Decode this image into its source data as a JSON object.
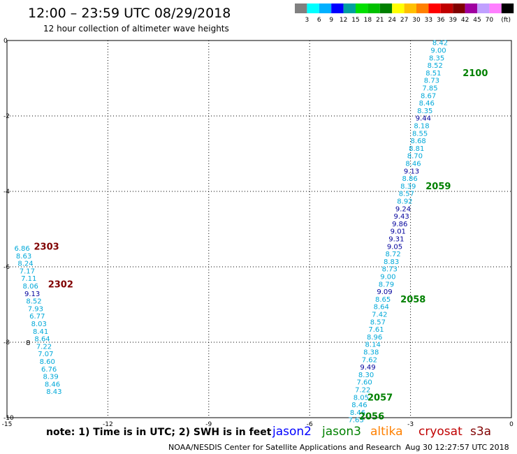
{
  "title": "12:00 – 23:59 UTC 08/29/2018",
  "subtitle": "12 hour collection of altimeter wave heights",
  "colorbar": {
    "unit_label": "(ft)",
    "bins": [
      {
        "color": "#808080",
        "label": ""
      },
      {
        "color": "#00ffff",
        "label": "3"
      },
      {
        "color": "#00b0ff",
        "label": "6"
      },
      {
        "color": "#0000ff",
        "label": "9"
      },
      {
        "color": "#00a0a0",
        "label": "12"
      },
      {
        "color": "#00e000",
        "label": "15"
      },
      {
        "color": "#00c000",
        "label": "18"
      },
      {
        "color": "#008000",
        "label": "21"
      },
      {
        "color": "#ffff00",
        "label": "24"
      },
      {
        "color": "#ffc000",
        "label": "27"
      },
      {
        "color": "#ff8000",
        "label": "30"
      },
      {
        "color": "#ff0000",
        "label": "33"
      },
      {
        "color": "#c00000",
        "label": "36"
      },
      {
        "color": "#800000",
        "label": "39"
      },
      {
        "color": "#a000a0",
        "label": "42"
      },
      {
        "color": "#c0a0ff",
        "label": "45"
      },
      {
        "color": "#ff80ff",
        "label": "70"
      },
      {
        "color": "#000000",
        "label": ""
      }
    ]
  },
  "footer": {
    "note": "note:  1) Time is in UTC;  2) SWH is in feet",
    "satellites": [
      {
        "name": "jason2",
        "color": "#0000ff"
      },
      {
        "name": "jason3",
        "color": "#008000"
      },
      {
        "name": "altika",
        "color": "#ff8000"
      },
      {
        "name": "cryosat",
        "color": "#c00000"
      },
      {
        "name": "s3a",
        "color": "#800000"
      }
    ],
    "credit": "NOAA/NESDIS Center for Satellite Applications and Research",
    "timestamp": "Aug 30 12:27:57 UTC 2018"
  },
  "chart_data": {
    "type": "scatter",
    "xlim": [
      -15,
      0
    ],
    "ylim": [
      -10,
      0
    ],
    "xticks": [
      -15,
      -12,
      -9,
      -6,
      -3,
      0
    ],
    "yticks": [
      0,
      -2,
      -4,
      -6,
      -8,
      -10
    ],
    "grid": true,
    "colors": {
      "cyan": "#00a8d8",
      "navy": "#00009c",
      "green": "#008000",
      "maroon": "#800000",
      "black": "#000000"
    },
    "tracks": [
      {
        "name": "jason3 track",
        "points": [
          {
            "x": -2.12,
            "y": -0.05,
            "v": "8.42",
            "c": "cyan"
          },
          {
            "x": -2.17,
            "y": -0.25,
            "v": "9.00",
            "c": "cyan"
          },
          {
            "x": -2.22,
            "y": -0.45,
            "v": "8.35",
            "c": "cyan"
          },
          {
            "x": -2.27,
            "y": -0.65,
            "v": "8.52",
            "c": "cyan"
          },
          {
            "x": -2.32,
            "y": -0.85,
            "v": "8.51",
            "c": "cyan"
          },
          {
            "x": -2.37,
            "y": -1.05,
            "v": "8.73",
            "c": "cyan"
          },
          {
            "x": -2.42,
            "y": -1.25,
            "v": "7.85",
            "c": "cyan"
          },
          {
            "x": -2.47,
            "y": -1.45,
            "v": "8.67",
            "c": "cyan"
          },
          {
            "x": -2.52,
            "y": -1.65,
            "v": "8.46",
            "c": "cyan"
          },
          {
            "x": -2.57,
            "y": -1.85,
            "v": "8.35",
            "c": "cyan"
          },
          {
            "x": -2.62,
            "y": -2.05,
            "v": "9.44",
            "c": "navy"
          },
          {
            "x": -2.67,
            "y": -2.25,
            "v": "8.18",
            "c": "cyan"
          },
          {
            "x": -2.72,
            "y": -2.45,
            "v": "8.55",
            "c": "cyan"
          },
          {
            "x": -2.77,
            "y": -2.65,
            "v": "8.68",
            "c": "cyan"
          },
          {
            "x": -2.82,
            "y": -2.85,
            "v": "8.81",
            "c": "cyan"
          },
          {
            "x": -2.87,
            "y": -3.05,
            "v": "8.70",
            "c": "cyan"
          },
          {
            "x": -2.92,
            "y": -3.25,
            "v": "8.46",
            "c": "cyan"
          },
          {
            "x": -2.97,
            "y": -3.45,
            "v": "9.13",
            "c": "navy"
          },
          {
            "x": -3.02,
            "y": -3.65,
            "v": "8.86",
            "c": "cyan"
          },
          {
            "x": -3.07,
            "y": -3.85,
            "v": "8.39",
            "c": "cyan"
          },
          {
            "x": -3.12,
            "y": -4.05,
            "v": "8.57",
            "c": "cyan"
          },
          {
            "x": -3.17,
            "y": -4.25,
            "v": "8.92",
            "c": "cyan"
          },
          {
            "x": -3.22,
            "y": -4.45,
            "v": "9.24",
            "c": "navy"
          },
          {
            "x": -3.27,
            "y": -4.65,
            "v": "9.43",
            "c": "navy"
          },
          {
            "x": -3.32,
            "y": -4.85,
            "v": "9.86",
            "c": "navy"
          },
          {
            "x": -3.37,
            "y": -5.05,
            "v": "9.01",
            "c": "navy"
          },
          {
            "x": -3.42,
            "y": -5.25,
            "v": "9.31",
            "c": "navy"
          },
          {
            "x": -3.47,
            "y": -5.45,
            "v": "9.05",
            "c": "navy"
          },
          {
            "x": -3.52,
            "y": -5.65,
            "v": "8.72",
            "c": "cyan"
          },
          {
            "x": -3.57,
            "y": -5.85,
            "v": "8.83",
            "c": "cyan"
          },
          {
            "x": -3.62,
            "y": -6.05,
            "v": "8.73",
            "c": "cyan"
          },
          {
            "x": -3.67,
            "y": -6.25,
            "v": "9.00",
            "c": "cyan"
          },
          {
            "x": -3.72,
            "y": -6.45,
            "v": "8.79",
            "c": "cyan"
          },
          {
            "x": -3.77,
            "y": -6.65,
            "v": "9.09",
            "c": "navy"
          },
          {
            "x": -3.82,
            "y": -6.85,
            "v": "8.65",
            "c": "cyan"
          },
          {
            "x": -3.87,
            "y": -7.05,
            "v": "8.64",
            "c": "cyan"
          },
          {
            "x": -3.92,
            "y": -7.25,
            "v": "7.42",
            "c": "cyan"
          },
          {
            "x": -3.97,
            "y": -7.45,
            "v": "8.57",
            "c": "cyan"
          },
          {
            "x": -4.02,
            "y": -7.65,
            "v": "7.61",
            "c": "cyan"
          },
          {
            "x": -4.07,
            "y": -7.85,
            "v": "8.96",
            "c": "cyan"
          },
          {
            "x": -4.12,
            "y": -8.05,
            "v": "8.14",
            "c": "cyan"
          },
          {
            "x": -4.17,
            "y": -8.25,
            "v": "8.38",
            "c": "cyan"
          },
          {
            "x": -4.22,
            "y": -8.45,
            "v": "7.62",
            "c": "cyan"
          },
          {
            "x": -4.27,
            "y": -8.65,
            "v": "9.49",
            "c": "navy"
          },
          {
            "x": -4.32,
            "y": -8.85,
            "v": "8.30",
            "c": "cyan"
          },
          {
            "x": -4.37,
            "y": -9.05,
            "v": "7.60",
            "c": "cyan"
          },
          {
            "x": -4.42,
            "y": -9.25,
            "v": "7.22",
            "c": "cyan"
          },
          {
            "x": -4.47,
            "y": -9.45,
            "v": "8.05",
            "c": "cyan"
          },
          {
            "x": -4.52,
            "y": -9.65,
            "v": "8.46",
            "c": "cyan"
          },
          {
            "x": -4.57,
            "y": -9.85,
            "v": "8.46",
            "c": "cyan"
          },
          {
            "x": -4.62,
            "y": -10.05,
            "v": "7.63",
            "c": "cyan"
          }
        ]
      },
      {
        "name": "s3a track",
        "points": [
          {
            "x": -14.55,
            "y": -5.5,
            "v": "6.86",
            "c": "cyan"
          },
          {
            "x": -14.5,
            "y": -5.7,
            "v": "8.63",
            "c": "cyan"
          },
          {
            "x": -14.45,
            "y": -5.9,
            "v": "8.24",
            "c": "cyan"
          },
          {
            "x": -14.4,
            "y": -6.1,
            "v": "7.17",
            "c": "cyan"
          },
          {
            "x": -14.35,
            "y": -6.3,
            "v": "7.11",
            "c": "cyan"
          },
          {
            "x": -14.3,
            "y": -6.5,
            "v": "8.06",
            "c": "cyan"
          },
          {
            "x": -14.25,
            "y": -6.7,
            "v": "9.13",
            "c": "navy"
          },
          {
            "x": -14.2,
            "y": -6.9,
            "v": "8.52",
            "c": "cyan"
          },
          {
            "x": -14.15,
            "y": -7.1,
            "v": "7.93",
            "c": "cyan"
          },
          {
            "x": -14.1,
            "y": -7.3,
            "v": "6.77",
            "c": "cyan"
          },
          {
            "x": -14.05,
            "y": -7.5,
            "v": "8.03",
            "c": "cyan"
          },
          {
            "x": -14.0,
            "y": -7.7,
            "v": "8.41",
            "c": "cyan"
          },
          {
            "x": -13.95,
            "y": -7.9,
            "v": "8.64",
            "c": "cyan"
          },
          {
            "x": -13.9,
            "y": -8.1,
            "v": "7.22",
            "c": "cyan"
          },
          {
            "x": -13.85,
            "y": -8.3,
            "v": "7.07",
            "c": "cyan"
          },
          {
            "x": -13.8,
            "y": -8.5,
            "v": "8.60",
            "c": "cyan"
          },
          {
            "x": -13.75,
            "y": -8.7,
            "v": "6.76",
            "c": "cyan"
          },
          {
            "x": -13.7,
            "y": -8.9,
            "v": "8.39",
            "c": "cyan"
          },
          {
            "x": -13.65,
            "y": -9.1,
            "v": "8.46",
            "c": "cyan"
          },
          {
            "x": -13.6,
            "y": -9.3,
            "v": "8.43",
            "c": "cyan"
          }
        ]
      }
    ],
    "pass_times": [
      {
        "x": -1.45,
        "y": -0.85,
        "label": "2100",
        "c": "green"
      },
      {
        "x": -2.55,
        "y": -3.85,
        "label": "2059",
        "c": "green"
      },
      {
        "x": -3.3,
        "y": -6.85,
        "label": "2058",
        "c": "green"
      },
      {
        "x": -4.28,
        "y": -9.45,
        "label": "2057",
        "c": "green"
      },
      {
        "x": -4.53,
        "y": -9.95,
        "label": "2056",
        "c": "green"
      },
      {
        "x": -14.2,
        "y": -5.45,
        "label": "2303",
        "c": "maroon"
      },
      {
        "x": -13.78,
        "y": -6.45,
        "label": "2302",
        "c": "maroon"
      }
    ],
    "markers": [
      {
        "x": -14.37,
        "y": -8.0,
        "label": "8",
        "c": "black"
      }
    ]
  }
}
